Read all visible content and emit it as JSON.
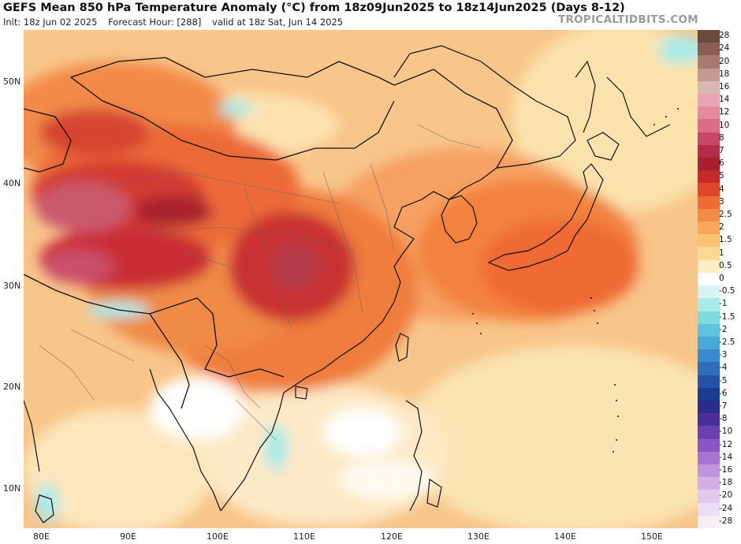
{
  "header": {
    "title": "GEFS Mean 850 hPa Temperature Anomaly (°C) from 18z09Jun2025 to 18z14Jun2025 (Days 8-12)",
    "init": "Init: 18z Jun 02 2025",
    "forecast_hour": "Forecast Hour: [288]",
    "valid": "valid at 18z Sat, Jun 14 2025",
    "brand": "TROPICALTIDBITS.COM"
  },
  "axes": {
    "lat_labels": [
      "50N",
      "40N",
      "30N",
      "20N",
      "10N"
    ],
    "lon_labels": [
      "80E",
      "90E",
      "100E",
      "110E",
      "120E",
      "130E",
      "140E",
      "150E"
    ]
  },
  "colorbar": {
    "labels": [
      "28",
      "24",
      "20",
      "18",
      "16",
      "14",
      "12",
      "10",
      "8",
      "7",
      "6",
      "5",
      "4",
      "3",
      "2.5",
      "2",
      "1.5",
      "1",
      "0.5",
      "0",
      "-0.5",
      "-1",
      "-1.5",
      "-2",
      "-2.5",
      "-3",
      "-4",
      "-5",
      "-6",
      "-7",
      "-8",
      "-10",
      "-12",
      "-14",
      "-16",
      "-18",
      "-20",
      "-24",
      "-28"
    ],
    "colors": [
      "#6b4a3a",
      "#8a5e52",
      "#a87a70",
      "#c49a92",
      "#d9b8b4",
      "#e8a6b4",
      "#e78aa0",
      "#db6d87",
      "#c94868",
      "#b52c4a",
      "#a8202f",
      "#c32a2a",
      "#e0462a",
      "#ef6b36",
      "#f58a45",
      "#f8a65a",
      "#fac275",
      "#fbd995",
      "#fdeec4",
      "#ffffff",
      "#d8f3f3",
      "#a9ebe8",
      "#7fdbe0",
      "#5ec4de",
      "#4aa8d8",
      "#3c8acd",
      "#2f6dbd",
      "#2352a8",
      "#1a3c8f",
      "#2a2e8a",
      "#4a2f9a",
      "#6a3fb0",
      "#8a55c4",
      "#a874d4",
      "#c394de",
      "#d4b0e6",
      "#e0c8ee",
      "#ecdcf4",
      "#f7eefa"
    ]
  }
}
